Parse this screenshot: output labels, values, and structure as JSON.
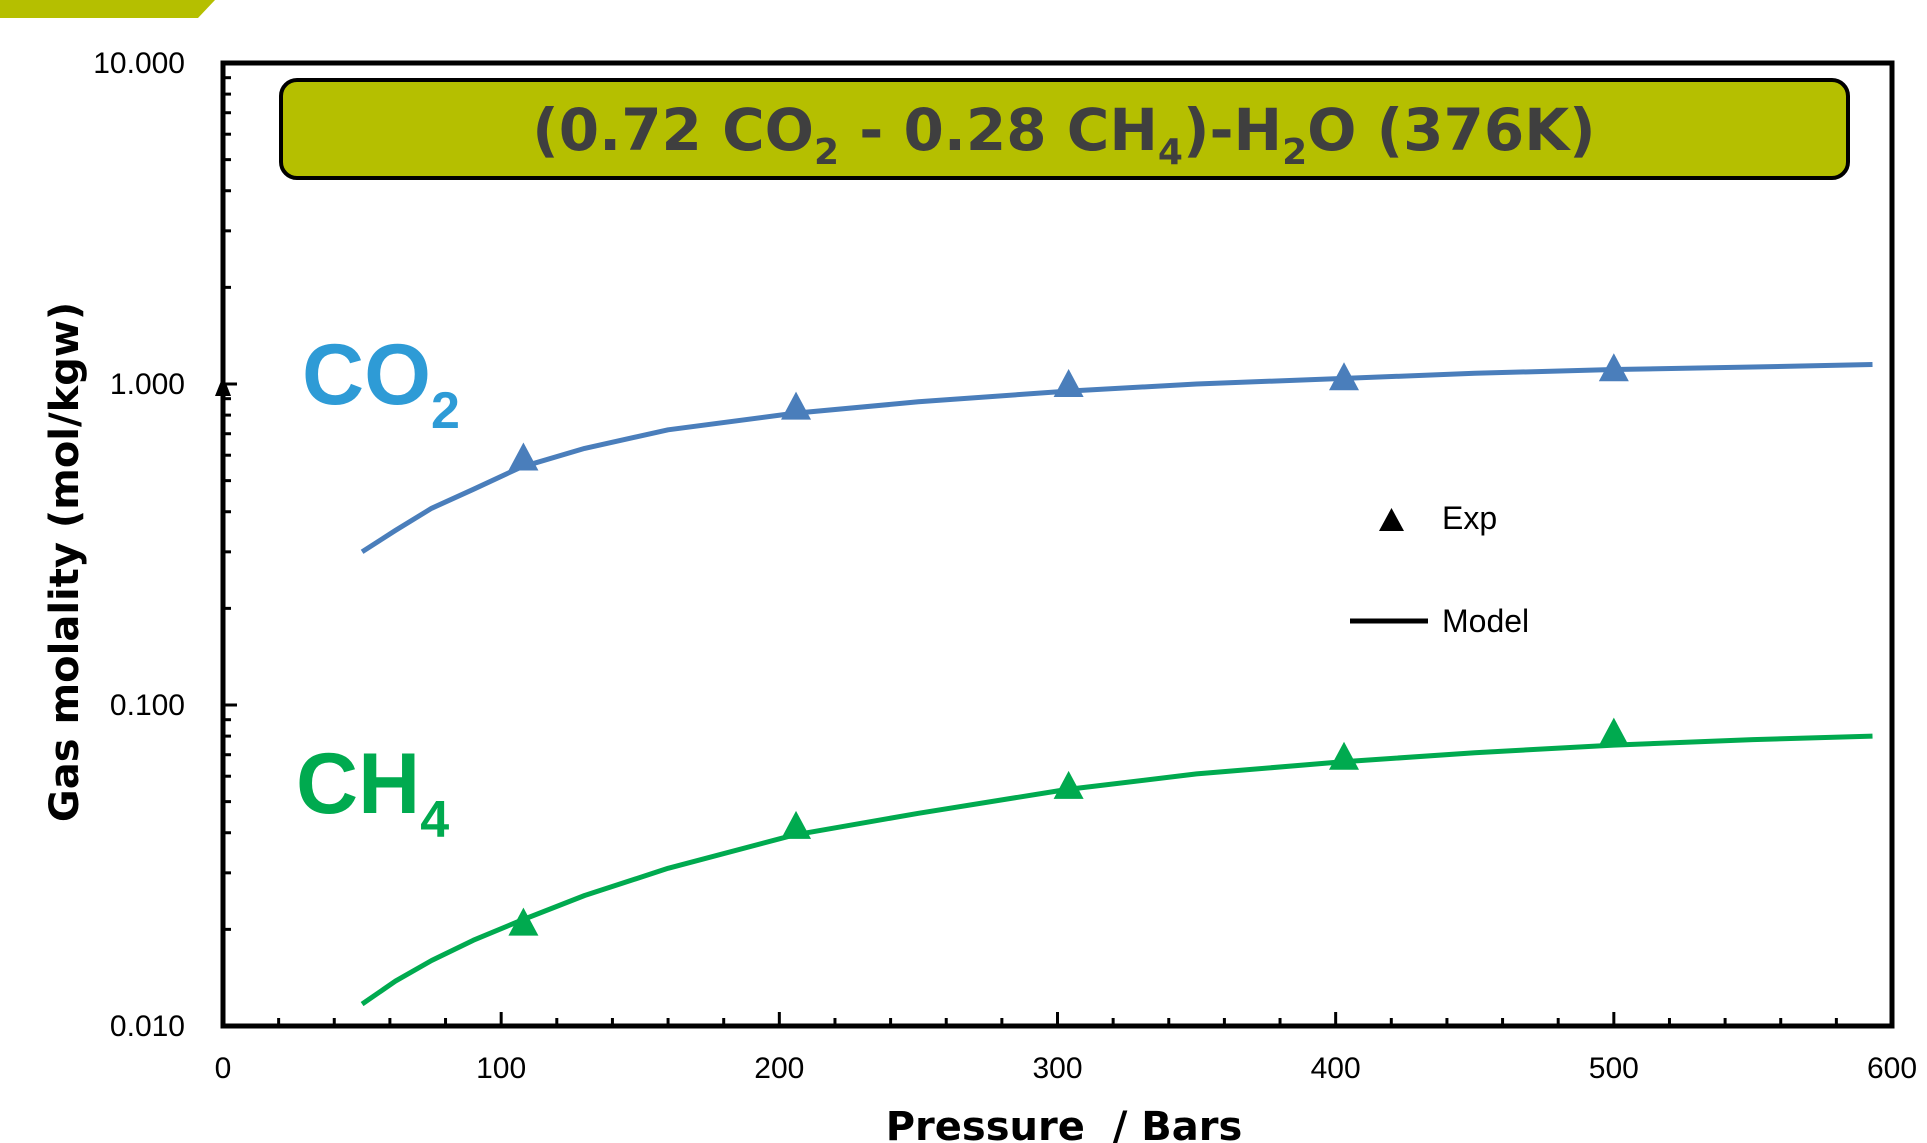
{
  "chart_data": {
    "type": "line",
    "y_scale": "log",
    "title_parts": [
      {
        "text": "(0.72 CO",
        "sub": false
      },
      {
        "text": "2",
        "sub": true
      },
      {
        "text": " - 0.28 CH",
        "sub": false
      },
      {
        "text": "4",
        "sub": true
      },
      {
        "text": ")-H",
        "sub": false
      },
      {
        "text": "2",
        "sub": true
      },
      {
        "text": "O (376K)",
        "sub": false
      }
    ],
    "xlabel": "Pressure  / Bars",
    "ylabel": "Gas molality (mol/kgw)",
    "xlim": [
      0,
      600
    ],
    "ylim": [
      0.01,
      10
    ],
    "x_ticks": [
      {
        "value": 0,
        "label": "0"
      },
      {
        "value": 100,
        "label": "100"
      },
      {
        "value": 200,
        "label": "200"
      },
      {
        "value": 300,
        "label": "300"
      },
      {
        "value": 400,
        "label": "400"
      },
      {
        "value": 500,
        "label": "500"
      },
      {
        "value": 600,
        "label": "600"
      }
    ],
    "y_ticks": [
      {
        "value": 0.01,
        "label": "0.010"
      },
      {
        "value": 0.1,
        "label": "0.100"
      },
      {
        "value": 1,
        "label": "1.000"
      },
      {
        "value": 10,
        "label": "10.000"
      }
    ],
    "grid": false,
    "legend": {
      "position": "center-right",
      "entries": [
        {
          "label": "Exp",
          "marker": "triangle"
        },
        {
          "label": "Model",
          "marker": "line"
        }
      ]
    },
    "series": [
      {
        "name": "CO2",
        "label_main": "CO",
        "label_sub": "2",
        "color": "#4a7ebb",
        "label_color": "#2e9bd6",
        "model": {
          "x": [
            50,
            62,
            75,
            90,
            107,
            130,
            160,
            205,
            250,
            303,
            350,
            402,
            450,
            500,
            550,
            593
          ],
          "y": [
            0.3,
            0.35,
            0.41,
            0.47,
            0.55,
            0.63,
            0.72,
            0.81,
            0.88,
            0.95,
            1.0,
            1.04,
            1.08,
            1.11,
            1.13,
            1.15
          ]
        },
        "experimental": {
          "x": [
            108,
            206,
            304,
            403,
            500
          ],
          "y": [
            0.59,
            0.85,
            1.0,
            1.05,
            1.12
          ]
        }
      },
      {
        "name": "CH4",
        "label_main": "CH",
        "label_sub": "4",
        "color": "#00aa4f",
        "label_color": "#00aa4f",
        "model": {
          "x": [
            50,
            62,
            75,
            90,
            107,
            130,
            160,
            205,
            250,
            303,
            350,
            402,
            450,
            500,
            550,
            593
          ],
          "y": [
            0.0117,
            0.0138,
            0.016,
            0.0185,
            0.0213,
            0.0255,
            0.031,
            0.0393,
            0.046,
            0.0545,
            0.061,
            0.0665,
            0.071,
            0.075,
            0.078,
            0.08
          ]
        },
        "experimental": {
          "x": [
            108,
            206,
            304,
            403,
            500
          ],
          "y": [
            0.021,
            0.042,
            0.056,
            0.069,
            0.082
          ]
        }
      }
    ]
  }
}
